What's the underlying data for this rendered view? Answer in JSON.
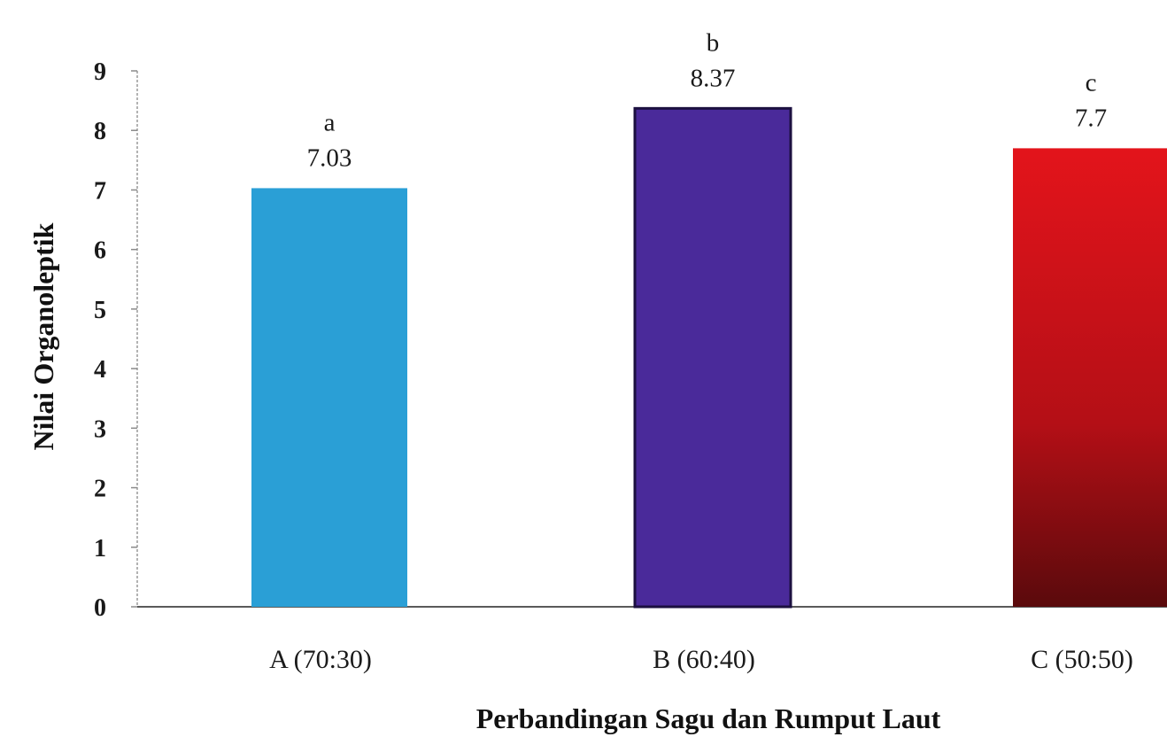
{
  "chart_data": {
    "type": "bar",
    "title": "",
    "xlabel": "Perbandingan Sagu dan Rumput Laut",
    "ylabel": "Nilai Organoleptik",
    "ylim": [
      0,
      9
    ],
    "yticks": [
      0,
      1,
      2,
      3,
      4,
      5,
      6,
      7,
      8,
      9
    ],
    "grid": false,
    "legend": "none",
    "categories": [
      "A (70:30)",
      "B (60:40)",
      "C (50:50)"
    ],
    "values": [
      7.03,
      8.37,
      7.7
    ],
    "value_labels": [
      "7.03",
      "8.37",
      "7.7"
    ],
    "significance_letters": [
      "a",
      "b",
      "c"
    ],
    "colors": [
      "#2a9fd6",
      "#4a2a9a",
      "#c0141c"
    ]
  }
}
